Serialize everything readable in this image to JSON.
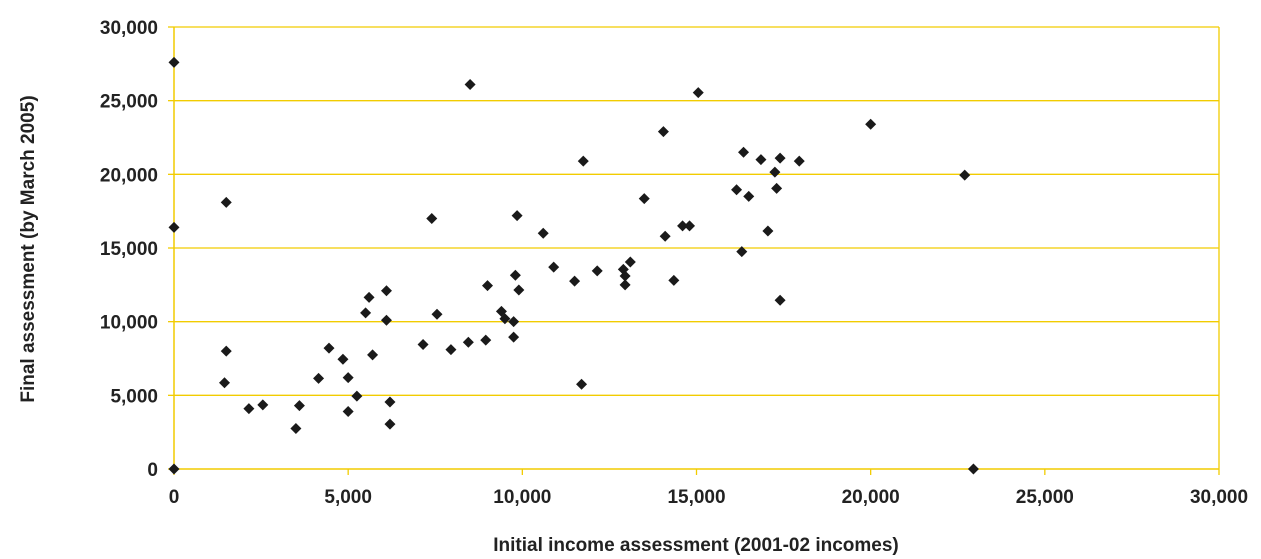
{
  "chart_data": {
    "type": "scatter",
    "title": "",
    "xlabel": "Initial income assessment (2001-02 incomes)",
    "ylabel": "Final assessment (by March 2005)",
    "xlim": [
      0,
      30000
    ],
    "ylim": [
      0,
      30000
    ],
    "x_ticks": [
      0,
      5000,
      10000,
      15000,
      20000,
      25000,
      30000
    ],
    "y_ticks": [
      0,
      5000,
      10000,
      15000,
      20000,
      25000,
      30000
    ],
    "x_tick_labels": [
      "0",
      "5,000",
      "10,000",
      "15,000",
      "20,000",
      "25,000",
      "30,000"
    ],
    "y_tick_labels": [
      "0",
      "5,000",
      "10,000",
      "15,000",
      "20,000",
      "25,000",
      "30,000"
    ],
    "grid": "horizontal",
    "legend": "none",
    "colors": {
      "marker": "#1a1a1a",
      "grid": "#f2cc00",
      "axis": "#f2cc00"
    },
    "marker": "diamond",
    "points": [
      {
        "x": 0,
        "y": 27600
      },
      {
        "x": 0,
        "y": 16400
      },
      {
        "x": 0,
        "y": 0
      },
      {
        "x": 1500,
        "y": 18100
      },
      {
        "x": 1500,
        "y": 8000
      },
      {
        "x": 1450,
        "y": 5850
      },
      {
        "x": 2150,
        "y": 4100
      },
      {
        "x": 2550,
        "y": 4350
      },
      {
        "x": 3500,
        "y": 2750
      },
      {
        "x": 3600,
        "y": 4300
      },
      {
        "x": 4150,
        "y": 6150
      },
      {
        "x": 4450,
        "y": 8200
      },
      {
        "x": 4850,
        "y": 7450
      },
      {
        "x": 5000,
        "y": 6200
      },
      {
        "x": 5000,
        "y": 3900
      },
      {
        "x": 5250,
        "y": 4950
      },
      {
        "x": 5500,
        "y": 10600
      },
      {
        "x": 5600,
        "y": 11650
      },
      {
        "x": 5700,
        "y": 7750
      },
      {
        "x": 6100,
        "y": 12100
      },
      {
        "x": 6100,
        "y": 10100
      },
      {
        "x": 6200,
        "y": 4550
      },
      {
        "x": 6200,
        "y": 3050
      },
      {
        "x": 7150,
        "y": 8450
      },
      {
        "x": 7400,
        "y": 17000
      },
      {
        "x": 7550,
        "y": 10500
      },
      {
        "x": 7950,
        "y": 8100
      },
      {
        "x": 8450,
        "y": 8600
      },
      {
        "x": 8500,
        "y": 26100
      },
      {
        "x": 8950,
        "y": 8750
      },
      {
        "x": 9000,
        "y": 12450
      },
      {
        "x": 9400,
        "y": 10700
      },
      {
        "x": 9500,
        "y": 10200
      },
      {
        "x": 9750,
        "y": 10000
      },
      {
        "x": 9750,
        "y": 8950
      },
      {
        "x": 9800,
        "y": 13150
      },
      {
        "x": 9850,
        "y": 17200
      },
      {
        "x": 9900,
        "y": 12150
      },
      {
        "x": 10600,
        "y": 16000
      },
      {
        "x": 10900,
        "y": 13700
      },
      {
        "x": 11500,
        "y": 12750
      },
      {
        "x": 11700,
        "y": 5750
      },
      {
        "x": 11750,
        "y": 20900
      },
      {
        "x": 12150,
        "y": 13450
      },
      {
        "x": 12900,
        "y": 13550
      },
      {
        "x": 12950,
        "y": 13100
      },
      {
        "x": 12950,
        "y": 12500
      },
      {
        "x": 13100,
        "y": 14050
      },
      {
        "x": 13500,
        "y": 18350
      },
      {
        "x": 14050,
        "y": 22900
      },
      {
        "x": 14100,
        "y": 15800
      },
      {
        "x": 14350,
        "y": 12800
      },
      {
        "x": 14600,
        "y": 16500
      },
      {
        "x": 14800,
        "y": 16500
      },
      {
        "x": 15050,
        "y": 25550
      },
      {
        "x": 16150,
        "y": 18950
      },
      {
        "x": 16300,
        "y": 14750
      },
      {
        "x": 16350,
        "y": 21500
      },
      {
        "x": 16500,
        "y": 18500
      },
      {
        "x": 16850,
        "y": 21000
      },
      {
        "x": 17050,
        "y": 16150
      },
      {
        "x": 17250,
        "y": 20150
      },
      {
        "x": 17300,
        "y": 19050
      },
      {
        "x": 17400,
        "y": 11450
      },
      {
        "x": 17400,
        "y": 21100
      },
      {
        "x": 17950,
        "y": 20900
      },
      {
        "x": 20000,
        "y": 23400
      },
      {
        "x": 22700,
        "y": 19950
      },
      {
        "x": 22950,
        "y": 0
      }
    ]
  }
}
